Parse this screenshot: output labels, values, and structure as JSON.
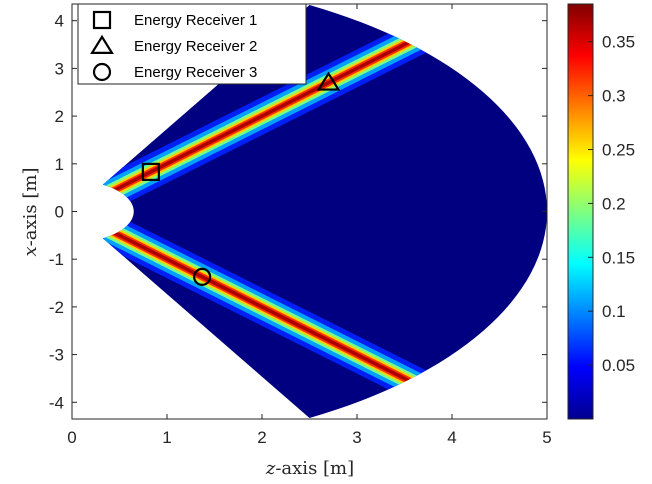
{
  "chart_data": {
    "type": "heatmap",
    "xlabel_var": "z",
    "xlabel_rest": "-axis [m]",
    "ylabel_var": "x",
    "ylabel_rest": "-axis [m]",
    "xlim": [
      0,
      5
    ],
    "ylim": [
      -4.35,
      4.35
    ],
    "xticks": [
      "0",
      "1",
      "2",
      "3",
      "4",
      "5"
    ],
    "yticks": [
      "4",
      "3",
      "2",
      "1",
      "0",
      "-1",
      "-2",
      "-3",
      "-4"
    ],
    "colorbar": {
      "ticks": [
        "0.35",
        "0.3",
        "0.25",
        "0.2",
        "0.15",
        "0.1",
        "0.05"
      ],
      "range": [
        0,
        0.385
      ],
      "colormap": "jet"
    },
    "region": {
      "outer_radius_m": 5.0,
      "inner_radius_m": 0.65,
      "angle_range_deg": [
        -60,
        60
      ]
    },
    "beams": [
      {
        "angle_deg": 45,
        "peak_value": 0.38
      },
      {
        "angle_deg": -45,
        "peak_value": 0.38
      }
    ],
    "markers": [
      {
        "label": "Energy Receiver 1",
        "marker": "square",
        "z": 0.83,
        "x": 0.83
      },
      {
        "label": "Energy Receiver 2",
        "marker": "triangle",
        "z": 2.7,
        "x": 2.7
      },
      {
        "label": "Energy Receiver 3",
        "marker": "circle",
        "z": 1.37,
        "x": -1.37
      }
    ],
    "grid": false,
    "legend_position": "top-left"
  }
}
